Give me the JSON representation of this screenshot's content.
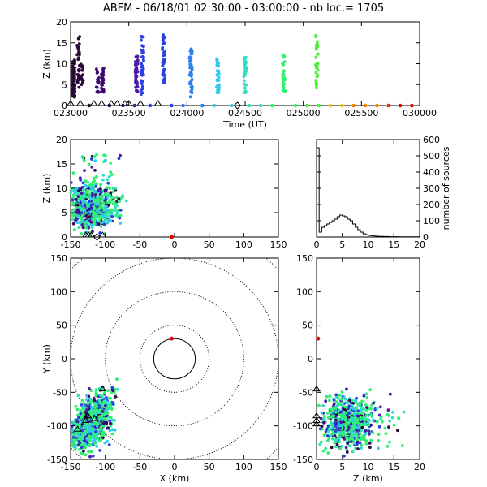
{
  "title": "ABFM - 06/18/01 02:30:00 - 03:00:00 - nb loc.=   1705",
  "colors": {
    "sources": [
      "#2a0a38",
      "#3c0a6e",
      "#4a1aa8",
      "#2a40e0",
      "#2a80f0",
      "#30c8f0",
      "#30e0c0",
      "#30f070",
      "#4cf038"
    ],
    "late": [
      "#f0c000",
      "#f08000",
      "#e03000",
      "#e00000"
    ],
    "histogram": "#000000"
  },
  "chart_data": [
    {
      "id": "time-height",
      "type": "scatter",
      "xlabel": "Time (UT)",
      "ylabel": "Z (km)",
      "xlim": [
        0,
        1800
      ],
      "ylim": [
        0,
        20
      ],
      "xticks": [
        0,
        300,
        600,
        900,
        1200,
        1500,
        1800
      ],
      "xticklabels": [
        "023000",
        "023500",
        "024000",
        "024500",
        "025000",
        "025500",
        "030000"
      ],
      "yticks": [
        0,
        5,
        10,
        15,
        20
      ],
      "clusters": [
        {
          "t": 15,
          "zmin": 2,
          "zmax": 11,
          "n": 80,
          "color": 0
        },
        {
          "t": 40,
          "zmin": 4,
          "zmax": 17.5,
          "n": 30,
          "color": 0
        },
        {
          "t": 60,
          "zmin": 5,
          "zmax": 10,
          "n": 15,
          "color": 0
        },
        {
          "t": 140,
          "zmin": 3,
          "zmax": 9,
          "n": 15,
          "color": 1
        },
        {
          "t": 165,
          "zmin": 3,
          "zmax": 9,
          "n": 25,
          "color": 1
        },
        {
          "t": 340,
          "zmin": 3,
          "zmax": 12,
          "n": 40,
          "color": 2
        },
        {
          "t": 370,
          "zmin": 2,
          "zmax": 17,
          "n": 40,
          "color": 3
        },
        {
          "t": 480,
          "zmin": 3,
          "zmax": 17.5,
          "n": 40,
          "color": 3
        },
        {
          "t": 620,
          "zmin": 2,
          "zmax": 14,
          "n": 40,
          "color": 4
        },
        {
          "t": 760,
          "zmin": 3,
          "zmax": 12,
          "n": 40,
          "color": 5
        },
        {
          "t": 900,
          "zmin": 3,
          "zmax": 12,
          "n": 40,
          "color": 6
        },
        {
          "t": 1100,
          "zmin": 3,
          "zmax": 12,
          "n": 30,
          "color": 7
        },
        {
          "t": 1270,
          "zmin": 4,
          "zmax": 17,
          "n": 30,
          "color": 8
        }
      ],
      "stations_t": [
        0,
        50,
        120,
        160,
        210,
        240,
        280,
        300,
        360,
        450
      ],
      "diamond_t": [
        860
      ],
      "ground_points": [
        {
          "t": 95,
          "color": 0
        },
        {
          "t": 200,
          "color": 1
        },
        {
          "t": 270,
          "color": 2
        },
        {
          "t": 330,
          "color": 2
        },
        {
          "t": 410,
          "color": 3
        },
        {
          "t": 520,
          "color": 3
        },
        {
          "t": 580,
          "color": 4
        },
        {
          "t": 680,
          "color": 4
        },
        {
          "t": 740,
          "color": 5
        },
        {
          "t": 830,
          "color": 5
        },
        {
          "t": 920,
          "color": 6
        },
        {
          "t": 980,
          "color": 6
        },
        {
          "t": 1040,
          "color": 7
        },
        {
          "t": 1160,
          "color": 7
        },
        {
          "t": 1220,
          "color": 8
        },
        {
          "t": 1280,
          "color": 8
        },
        {
          "t": 1340,
          "late": 0
        },
        {
          "t": 1400,
          "late": 0
        },
        {
          "t": 1460,
          "late": 1
        },
        {
          "t": 1520,
          "late": 1
        },
        {
          "t": 1580,
          "late": 1
        },
        {
          "t": 1640,
          "late": 2
        },
        {
          "t": 1700,
          "late": 3
        },
        {
          "t": 1760,
          "late": 3
        }
      ]
    },
    {
      "id": "x-z",
      "type": "scatter",
      "xlabel": "",
      "ylabel": "Z (km)",
      "xlim": [
        -150,
        150
      ],
      "ylim": [
        0,
        20
      ],
      "xticks": [
        -150,
        -100,
        -50,
        0,
        50,
        100,
        150
      ],
      "yticks": [
        0,
        5,
        10,
        15,
        20
      ],
      "cluster": {
        "xc": -120,
        "xspread": 18,
        "zc": 6,
        "zspread": 2.2,
        "n": 700
      },
      "stations_x": [
        -128,
        -124,
        -120,
        -104
      ],
      "diamond_x": [
        -112
      ],
      "red_point": {
        "x": -4,
        "z": 0
      }
    },
    {
      "id": "height-histogram",
      "type": "bar",
      "xlabel": "",
      "ylabel": "number of sources",
      "xlim": [
        0,
        20
      ],
      "ylim": [
        0,
        600
      ],
      "xticks": [
        0,
        5,
        10,
        15,
        20
      ],
      "yticks": [
        0,
        100,
        200,
        300,
        400,
        500,
        600
      ],
      "bin_width": 0.5,
      "values": [
        550,
        30,
        60,
        70,
        80,
        90,
        100,
        110,
        125,
        135,
        130,
        125,
        110,
        100,
        80,
        60,
        45,
        30,
        20,
        15,
        10,
        8,
        6,
        5,
        4,
        4,
        3,
        3,
        2,
        2,
        2,
        2,
        1,
        1,
        1,
        1,
        1,
        1,
        1,
        1
      ]
    },
    {
      "id": "plan-view",
      "type": "scatter",
      "xlabel": "X (km)",
      "ylabel": "Y (km)",
      "xlim": [
        -150,
        150
      ],
      "ylim": [
        -150,
        150
      ],
      "xticks": [
        -150,
        -100,
        -50,
        0,
        50,
        100,
        150
      ],
      "yticks": [
        -150,
        -100,
        -50,
        0,
        50,
        100,
        150
      ],
      "range_rings_km": [
        50,
        100,
        150,
        200
      ],
      "inner_ring_km": 30,
      "cluster": {
        "xc": -120,
        "xspread": 15,
        "yc": -95,
        "yspread": 18,
        "n": 700
      },
      "stations": [
        {
          "x": -128,
          "y": -95
        },
        {
          "x": -125,
          "y": -88
        },
        {
          "x": -115,
          "y": -92
        },
        {
          "x": -140,
          "y": -108
        },
        {
          "x": -104,
          "y": -48
        }
      ],
      "red_point": {
        "x": -4,
        "y": 30
      }
    },
    {
      "id": "z-y",
      "type": "scatter",
      "xlabel": "Z (km)",
      "ylabel": "",
      "xlim": [
        0,
        20
      ],
      "ylim": [
        -150,
        150
      ],
      "xticks": [
        0,
        5,
        10,
        15,
        20
      ],
      "yticks": [
        -150,
        -100,
        -50,
        0,
        50,
        100,
        150
      ],
      "cluster": {
        "zc": 6,
        "zspread": 2.2,
        "yc": -95,
        "yspread": 18,
        "n": 700
      },
      "stations_y": [
        -88,
        -95,
        -100,
        -48
      ],
      "red_point": {
        "z": 0.3,
        "y": 30
      }
    }
  ]
}
